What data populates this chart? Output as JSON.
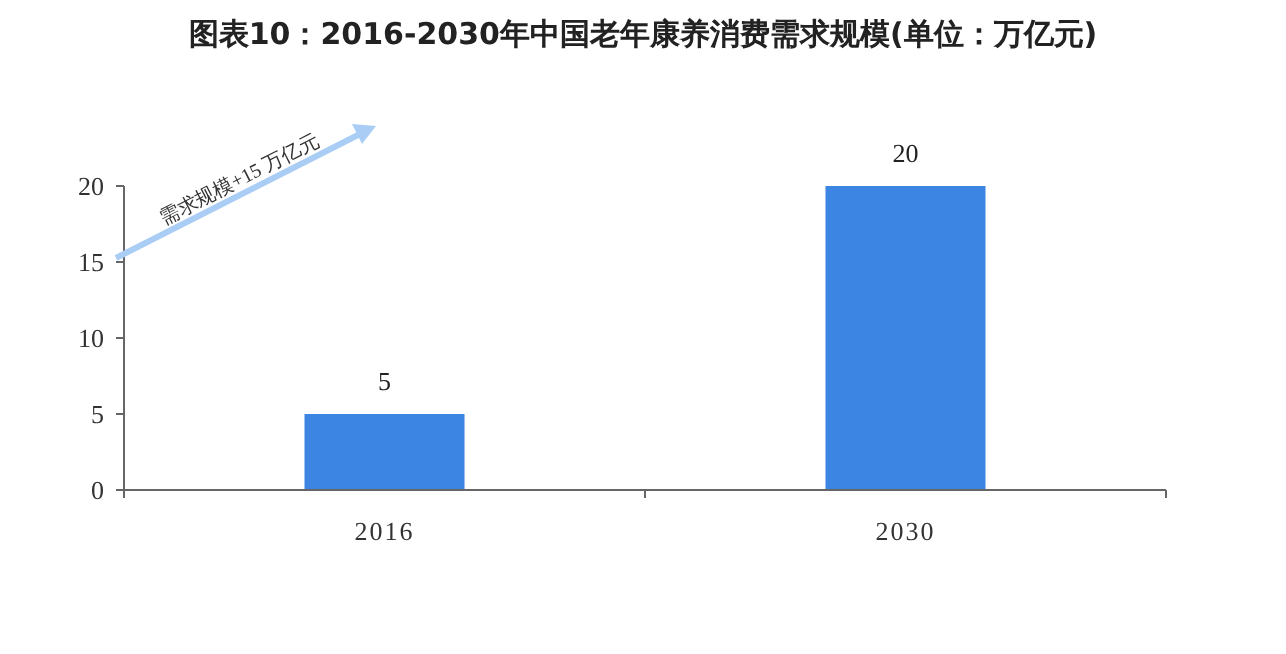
{
  "chart_data": {
    "type": "bar",
    "title": "图表10：2016-2030年中国老年康养消费需求规模(单位：万亿元)",
    "categories": [
      "2016",
      "2030"
    ],
    "values": [
      5,
      20
    ],
    "color": "#3d85e3",
    "ylim": [
      0,
      20
    ],
    "yticks": [
      0,
      5,
      10,
      15,
      20
    ],
    "data_labels": true,
    "grid": false,
    "annotations": [
      "需求规模+15 万亿元"
    ]
  }
}
